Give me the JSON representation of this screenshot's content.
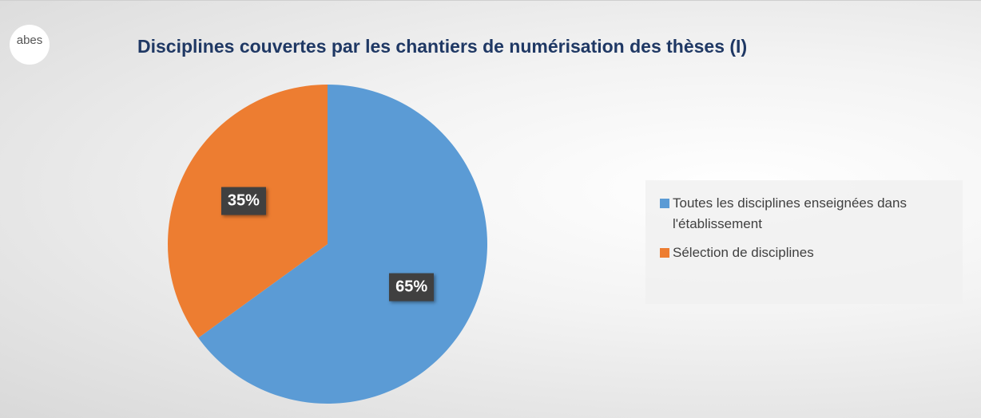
{
  "logo": "abes",
  "chart_data": {
    "type": "pie",
    "title": "Disciplines couvertes par les chantiers de numérisation des thèses (I)",
    "categories": [
      "Toutes les disciplines enseignées dans l'établissement",
      "Sélection de disciplines"
    ],
    "values": [
      65,
      35
    ],
    "value_labels": [
      "65%",
      "35%"
    ],
    "colors": [
      "#5b9bd5",
      "#ed7d31"
    ],
    "legend": "right"
  }
}
